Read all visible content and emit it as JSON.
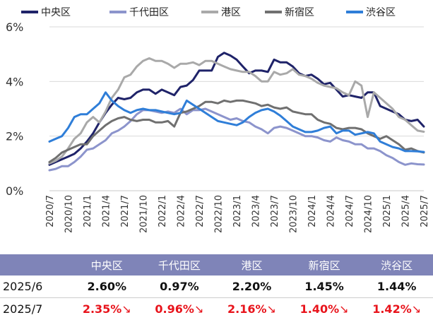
{
  "chart_data": {
    "type": "line",
    "x": [
      "2020/7",
      "2020/8",
      "2020/9",
      "2020/10",
      "2020/11",
      "2020/12",
      "2021/1",
      "2021/2",
      "2021/3",
      "2021/4",
      "2021/5",
      "2021/6",
      "2021/7",
      "2021/8",
      "2021/9",
      "2021/10",
      "2021/11",
      "2021/12",
      "2022/1",
      "2022/2",
      "2022/3",
      "2022/4",
      "2022/5",
      "2022/6",
      "2022/7",
      "2022/8",
      "2022/9",
      "2022/10",
      "2022/11",
      "2022/12",
      "2023/1",
      "2023/2",
      "2023/3",
      "2023/4",
      "2023/5",
      "2023/6",
      "2023/7",
      "2023/8",
      "2023/9",
      "2023/10",
      "2023/11",
      "2023/12",
      "2024/1",
      "2024/2",
      "2024/3",
      "2024/4",
      "2024/5",
      "2024/6",
      "2024/7",
      "2024/8",
      "2024/9",
      "2024/10",
      "2024/11",
      "2024/12",
      "2025/1",
      "2025/2",
      "2025/3",
      "2025/4",
      "2025/5",
      "2025/6",
      "2025/7"
    ],
    "x_ticks": [
      "2020/7",
      "2020/10",
      "2021/1",
      "2021/4",
      "2021/7",
      "2021/10",
      "2022/1",
      "2022/4",
      "2022/7",
      "2022/10",
      "2023/1",
      "2023/4",
      "2023/7",
      "2023/10",
      "2024/1",
      "2024/4",
      "2024/7",
      "2024/10",
      "2025/1",
      "2025/4",
      "2025/7"
    ],
    "y_ticks": [
      "0%",
      "2%",
      "4%",
      "6%"
    ],
    "ylim": [
      0,
      6
    ],
    "legend_position": "top",
    "series": [
      {
        "name": "中央区",
        "color": "#1f2369",
        "values": [
          0.95,
          1.05,
          1.15,
          1.25,
          1.35,
          1.55,
          1.8,
          2.1,
          2.5,
          2.85,
          3.15,
          3.4,
          3.35,
          3.4,
          3.6,
          3.7,
          3.7,
          3.55,
          3.7,
          3.6,
          3.5,
          3.8,
          3.85,
          4.05,
          4.4,
          4.4,
          4.4,
          4.9,
          5.05,
          4.95,
          4.8,
          4.55,
          4.3,
          4.4,
          4.4,
          4.35,
          4.8,
          4.7,
          4.7,
          4.55,
          4.3,
          4.2,
          4.25,
          4.1,
          3.9,
          3.95,
          3.7,
          3.45,
          3.5,
          3.45,
          3.4,
          3.6,
          3.6,
          3.1,
          3.0,
          2.9,
          2.8,
          2.6,
          2.55,
          2.6,
          2.35
        ]
      },
      {
        "name": "千代田区",
        "color": "#8c94cc",
        "values": [
          0.75,
          0.8,
          0.9,
          0.9,
          1.05,
          1.25,
          1.5,
          1.55,
          1.7,
          1.85,
          2.1,
          2.2,
          2.35,
          2.55,
          2.8,
          2.95,
          2.95,
          2.9,
          2.85,
          2.9,
          2.85,
          3.0,
          2.8,
          2.95,
          2.95,
          3.0,
          2.9,
          2.8,
          2.7,
          2.6,
          2.65,
          2.55,
          2.5,
          2.35,
          2.25,
          2.1,
          2.3,
          2.35,
          2.3,
          2.2,
          2.1,
          2.0,
          2.0,
          1.95,
          1.85,
          1.8,
          1.95,
          1.85,
          1.8,
          1.7,
          1.7,
          1.55,
          1.55,
          1.45,
          1.3,
          1.2,
          1.05,
          0.95,
          1.0,
          0.97,
          0.96
        ]
      },
      {
        "name": "港区",
        "color": "#a9a9a9",
        "values": [
          1.0,
          1.1,
          1.25,
          1.55,
          1.9,
          2.1,
          2.5,
          2.7,
          2.5,
          2.9,
          3.4,
          3.7,
          4.15,
          4.25,
          4.55,
          4.75,
          4.85,
          4.75,
          4.75,
          4.65,
          4.5,
          4.65,
          4.65,
          4.7,
          4.6,
          4.75,
          4.75,
          4.65,
          4.55,
          4.45,
          4.4,
          4.35,
          4.35,
          4.2,
          4.0,
          4.0,
          4.35,
          4.25,
          4.3,
          4.45,
          4.25,
          4.2,
          4.1,
          3.95,
          3.85,
          3.8,
          3.75,
          3.6,
          3.5,
          4.0,
          3.85,
          2.7,
          3.6,
          3.4,
          3.2,
          3.0,
          2.7,
          2.6,
          2.4,
          2.2,
          2.16
        ]
      },
      {
        "name": "新宿区",
        "color": "#707070",
        "values": [
          1.05,
          1.2,
          1.4,
          1.5,
          1.6,
          1.7,
          1.7,
          2.0,
          2.2,
          2.4,
          2.55,
          2.65,
          2.7,
          2.6,
          2.55,
          2.6,
          2.6,
          2.5,
          2.5,
          2.55,
          2.35,
          2.85,
          2.9,
          3.0,
          3.1,
          3.25,
          3.25,
          3.2,
          3.3,
          3.25,
          3.3,
          3.3,
          3.25,
          3.2,
          3.1,
          3.15,
          3.05,
          3.0,
          3.05,
          2.9,
          2.85,
          2.8,
          2.8,
          2.6,
          2.5,
          2.45,
          2.3,
          2.25,
          2.3,
          2.3,
          2.25,
          2.1,
          2.0,
          1.9,
          2.0,
          1.85,
          1.7,
          1.5,
          1.55,
          1.45,
          1.4
        ]
      },
      {
        "name": "渋谷区",
        "color": "#2f7ed8",
        "values": [
          1.8,
          1.9,
          2.0,
          2.3,
          2.7,
          2.8,
          2.8,
          3.0,
          3.2,
          3.6,
          3.3,
          3.1,
          2.95,
          2.85,
          2.95,
          3.0,
          2.95,
          2.95,
          2.9,
          2.85,
          2.8,
          2.85,
          3.3,
          3.15,
          3.0,
          2.85,
          2.7,
          2.55,
          2.5,
          2.45,
          2.4,
          2.5,
          2.7,
          2.85,
          2.95,
          3.0,
          2.9,
          2.75,
          2.55,
          2.35,
          2.25,
          2.15,
          2.15,
          2.2,
          2.3,
          2.35,
          2.1,
          2.2,
          2.2,
          2.05,
          2.1,
          2.15,
          2.1,
          1.8,
          1.7,
          1.6,
          1.55,
          1.45,
          1.45,
          1.44,
          1.42
        ]
      }
    ]
  },
  "table": {
    "headers": [
      "",
      "中央区",
      "千代田区",
      "港区",
      "新宿区",
      "渋谷区"
    ],
    "rows": [
      {
        "label": "2025/6",
        "values": [
          "2.60%",
          "0.97%",
          "2.20%",
          "1.45%",
          "1.44%"
        ],
        "arrows": [
          "",
          "",
          "",
          "",
          ""
        ],
        "status": "normal"
      },
      {
        "label": "2025/7",
        "values": [
          "2.35%",
          "0.96%",
          "2.16%",
          "1.40%",
          "1.42%"
        ],
        "arrows": [
          "↘",
          "↘",
          "↘",
          "↘",
          "↘"
        ],
        "status": "down"
      }
    ],
    "down_color": "#e8141c",
    "header_bg": "#7f84b8"
  }
}
